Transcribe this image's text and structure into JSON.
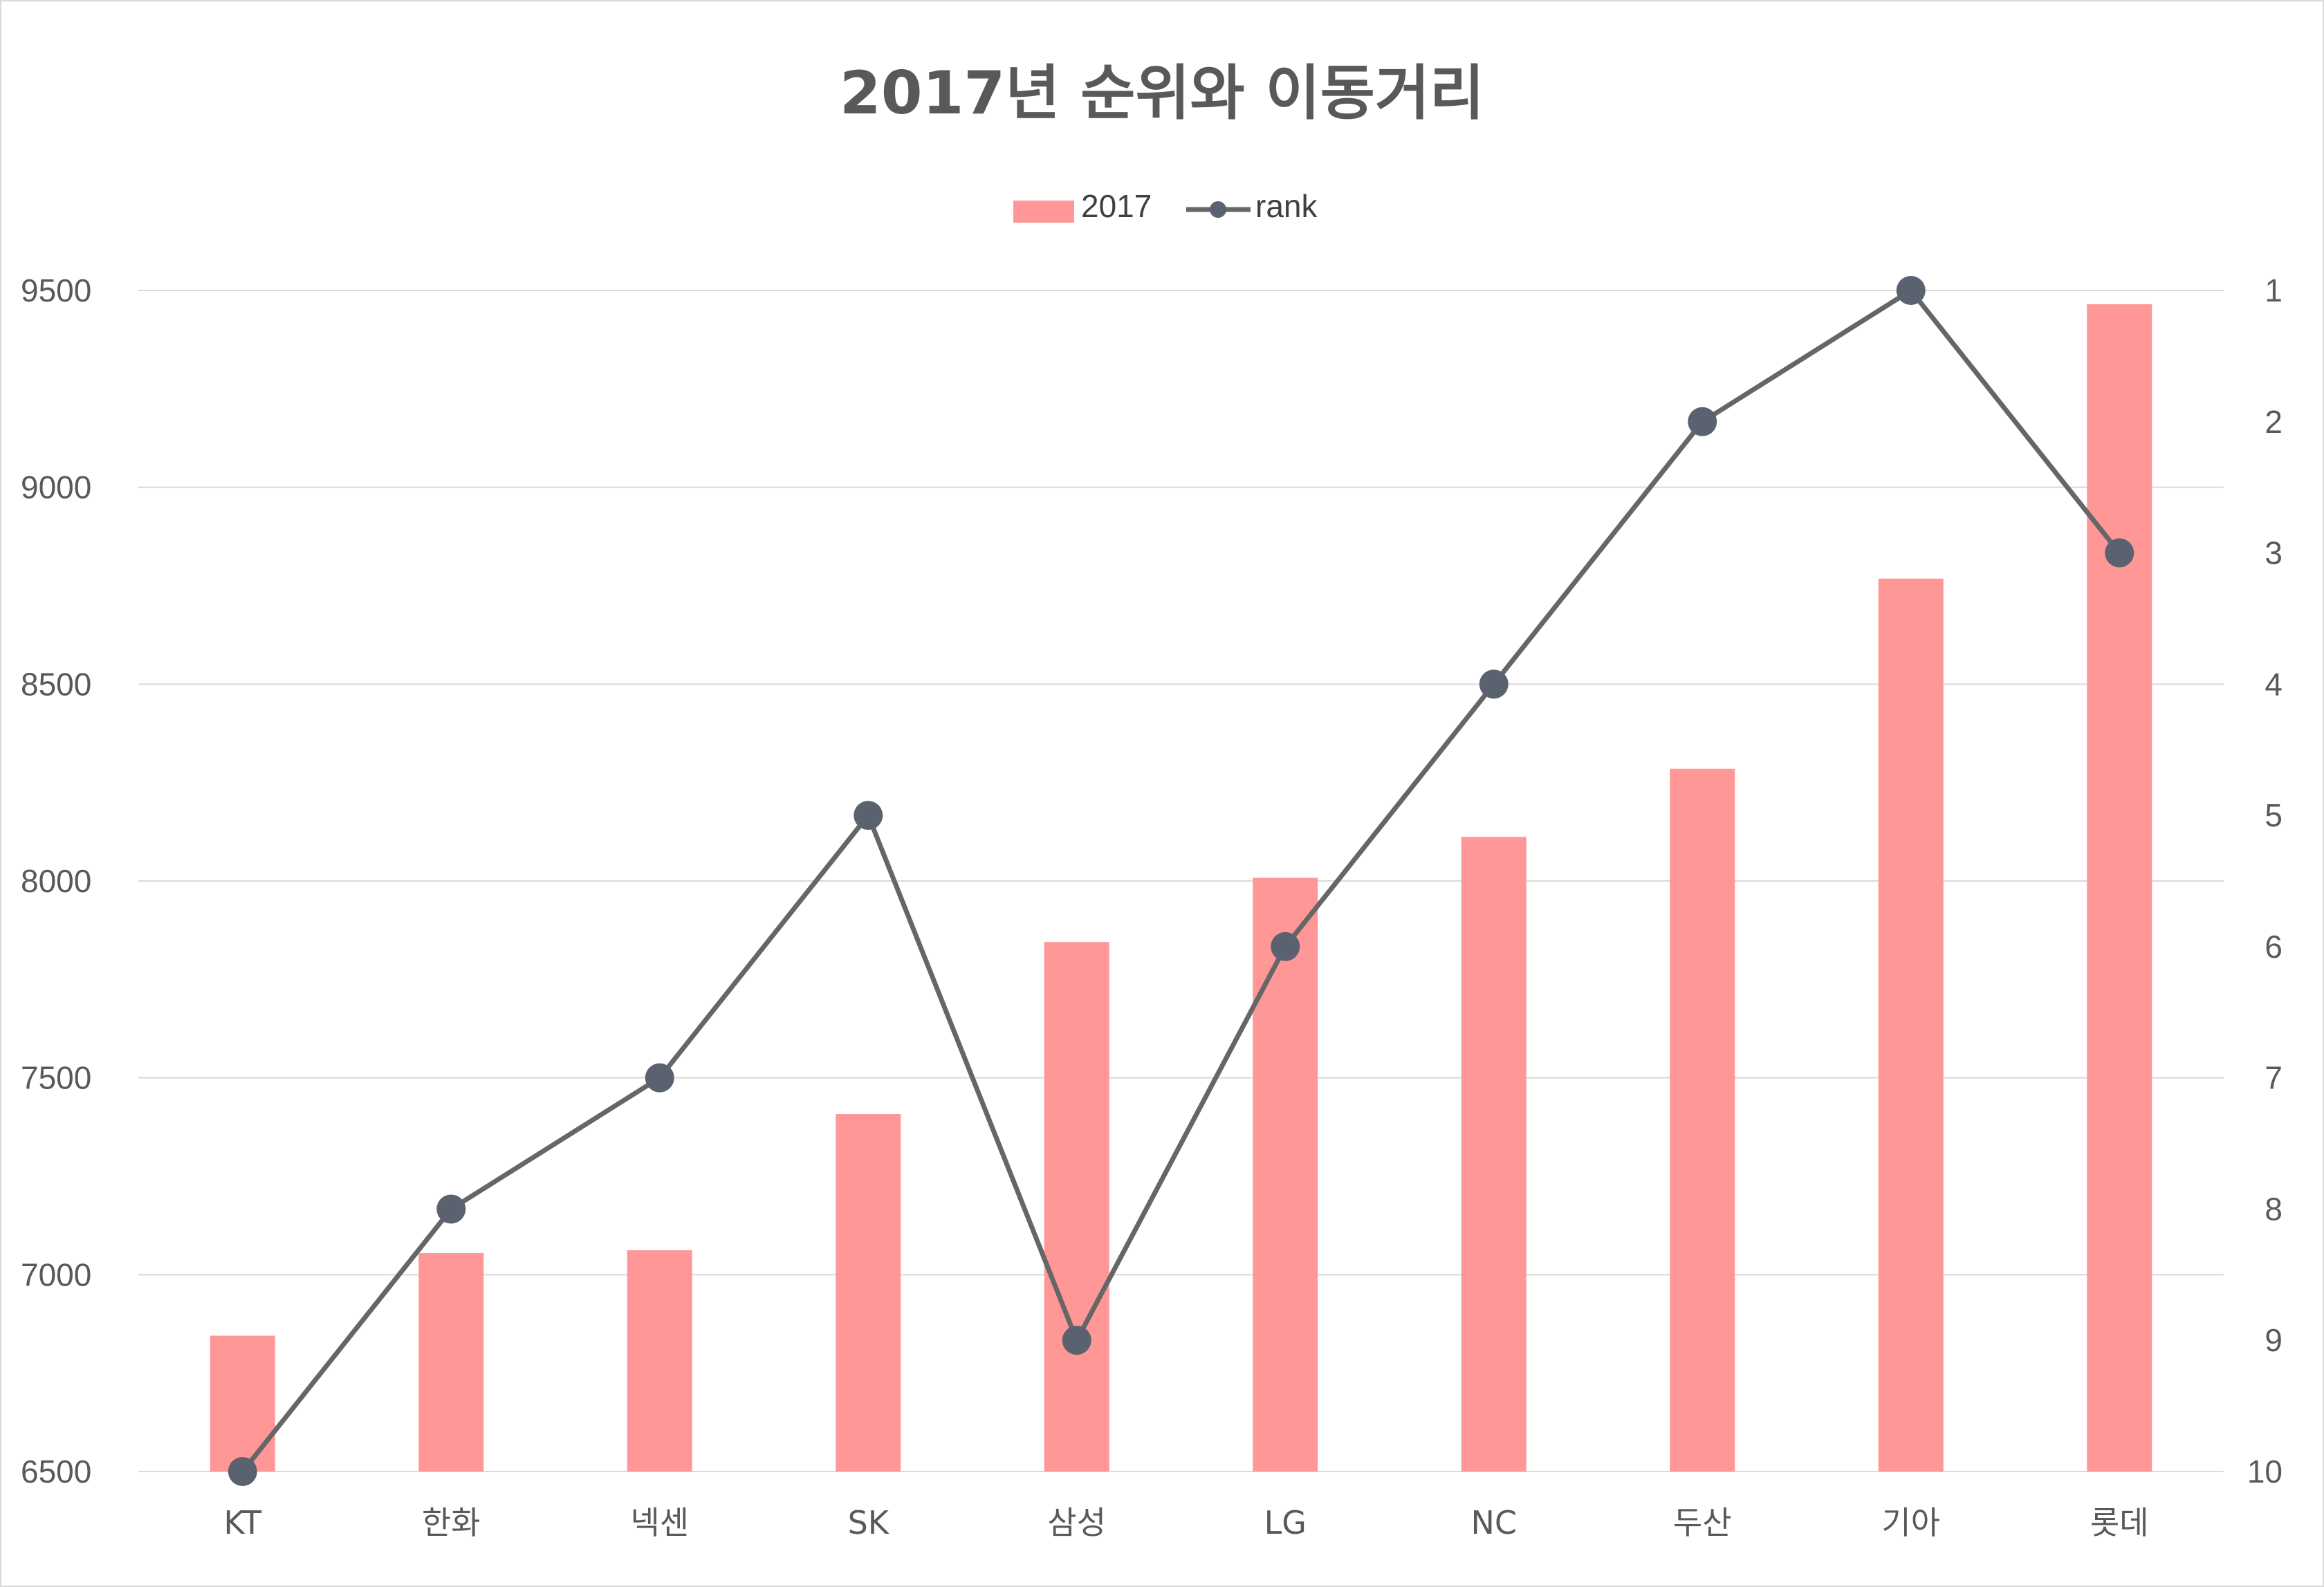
{
  "chart_data": {
    "type": "bar+line",
    "title": "2017년 순위와 이동거리",
    "categories": [
      "KT",
      "한화",
      "넥센",
      "SK",
      "삼성",
      "LG",
      "NC",
      "두산",
      "기아",
      "롯데"
    ],
    "series": [
      {
        "name": "2017",
        "type": "bar",
        "axis": "left",
        "color": "#ff9797",
        "values": [
          6845,
          7055,
          7062,
          7408,
          7845,
          8008,
          8112,
          8285,
          8768,
          9465
        ]
      },
      {
        "name": "rank",
        "type": "line",
        "axis": "right",
        "color": "#666666",
        "marker_color": "#5a6270",
        "values": [
          10,
          8,
          7,
          5,
          9,
          6,
          4,
          2,
          1,
          3
        ]
      }
    ],
    "y_left": {
      "min": 6500,
      "max": 9500,
      "ticks": [
        6500,
        7000,
        7500,
        8000,
        8500,
        9000,
        9500
      ]
    },
    "y_right": {
      "min": 1,
      "max": 10,
      "reversed": true,
      "ticks": [
        1,
        2,
        3,
        4,
        5,
        6,
        7,
        8,
        9,
        10
      ]
    },
    "legend_position": "top",
    "grid": true
  }
}
